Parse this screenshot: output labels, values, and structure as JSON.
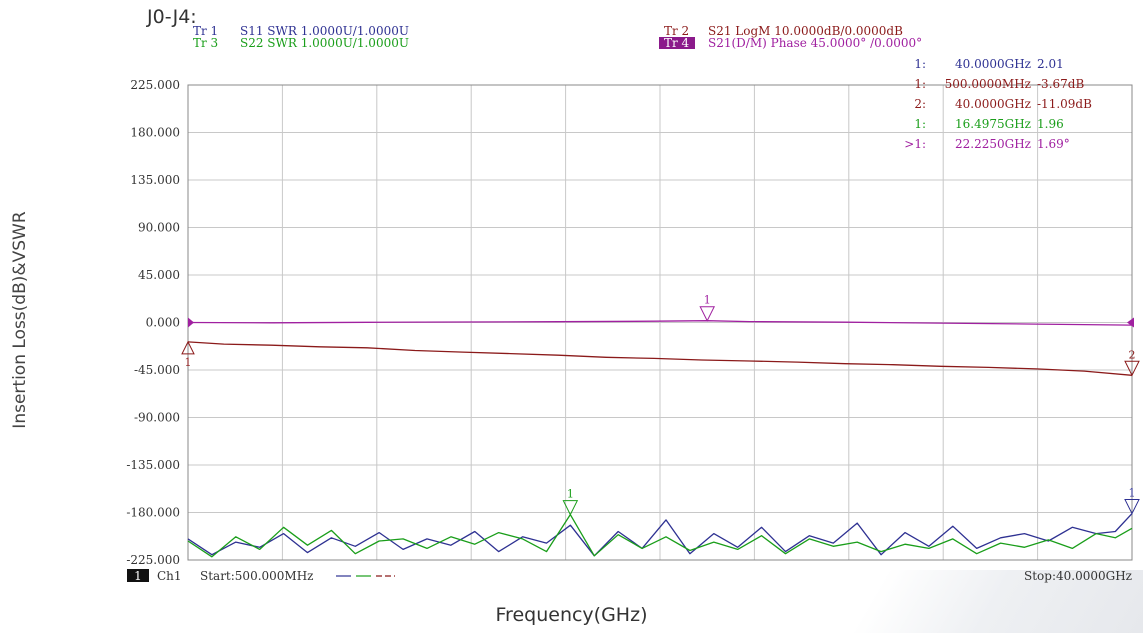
{
  "figure_title": "J0-J4:",
  "axis_titles": {
    "y": "Insertion Loss(dB)&VSWR",
    "x": "Frequency(GHz)"
  },
  "traces": [
    {
      "tr": "Tr 1",
      "desc": "S11 SWR 1.0000U/1.0000U",
      "color": "#2e3192"
    },
    {
      "tr": "Tr 3",
      "desc": "S22 SWR 1.0000U/1.0000U",
      "color": "#1a9e1a"
    },
    {
      "tr": "Tr 2",
      "desc": "S21 LogM 10.0000dB/0.0000dB",
      "color": "#8b1a1a"
    },
    {
      "tr": "Tr 4",
      "desc": "S21(D/M) Phase 45.0000° /0.0000°",
      "color": "#a020a0",
      "active": true
    }
  ],
  "marker_table": [
    {
      "idx": "1:",
      "freq": "40.0000GHz",
      "val": "2.01",
      "color": "#2e3192"
    },
    {
      "idx": "1:",
      "freq": "500.0000MHz",
      "val": "-3.67dB",
      "color": "#8b1a1a"
    },
    {
      "idx": "2:",
      "freq": "40.0000GHz",
      "val": "-11.09dB",
      "color": "#8b1a1a"
    },
    {
      "idx": "1:",
      "freq": "16.4975GHz",
      "val": "1.96",
      "color": "#1a9e1a"
    },
    {
      "idx": ">1:",
      "freq": "22.2250GHz",
      "val": "1.69°",
      "color": "#a020a0"
    }
  ],
  "footer": {
    "channel_box": "1",
    "channel": "Ch1",
    "start": "Start:500.000MHz",
    "stop": "Stop:40.0000GHz"
  },
  "colors": {
    "grid": "#c8c8c8",
    "frame": "#888888",
    "s11": "#2e3192",
    "s22": "#1a9e1a",
    "s21": "#8b1a1a",
    "phase": "#a020a0"
  },
  "chart_data": {
    "type": "line",
    "xlabel": "Frequency(GHz)",
    "ylabel": "Insertion Loss(dB)&VSWR",
    "x_range": [
      0.5,
      40
    ],
    "ylim": [
      -225,
      225
    ],
    "y_ticks": [
      "225.000",
      "180.000",
      "135.000",
      "90.000",
      "45.000",
      "0.000",
      "-45.000",
      "-90.000",
      "-135.000",
      "-180.000",
      "-225.000"
    ],
    "y_tick_values": [
      225,
      180,
      135,
      90,
      45,
      0,
      -45,
      -90,
      -135,
      -180,
      -225
    ],
    "grid": true,
    "series": [
      {
        "name": "S21(D/M) Phase",
        "color": "#a020a0",
        "x": [
          0.5,
          4,
          8,
          12,
          16,
          20,
          22.225,
          24,
          28,
          32,
          36,
          40
        ],
        "y": [
          0,
          -0.3,
          0.2,
          0.5,
          0.8,
          1.2,
          1.69,
          0.9,
          0.3,
          -0.6,
          -1.5,
          -2.5
        ]
      },
      {
        "name": "S21 LogM",
        "color": "#8b1a1a",
        "x": [
          0.5,
          2,
          4,
          6,
          8,
          10,
          12,
          14,
          16,
          18,
          20,
          22,
          24,
          26,
          28,
          30,
          32,
          34,
          36,
          38,
          40
        ],
        "y": [
          -18.4,
          -20.5,
          -21.5,
          -23,
          -24,
          -26.5,
          -28,
          -29.5,
          -31,
          -33,
          -34,
          -35.5,
          -36.5,
          -37.5,
          -39,
          -40,
          -41.5,
          -42.5,
          -44,
          -46,
          -50
        ]
      },
      {
        "name": "S11 SWR",
        "color": "#2e3192",
        "x": [
          0.5,
          1.5,
          2.5,
          3.5,
          4.5,
          5.5,
          6.5,
          7.5,
          8.5,
          9.5,
          10.5,
          11.5,
          12.5,
          13.5,
          14.5,
          15.5,
          16.5,
          17.5,
          18.5,
          19.5,
          20.5,
          21.5,
          22.5,
          23.5,
          24.5,
          25.5,
          26.5,
          27.5,
          28.5,
          29.5,
          30.5,
          31.5,
          32.5,
          33.5,
          34.5,
          35.5,
          36.5,
          37.5,
          38.5,
          39.3,
          40
        ],
        "y": [
          -205,
          -220,
          -208,
          -213,
          -200,
          -218,
          -204,
          -212,
          -199,
          -215,
          -205,
          -211,
          -198,
          -217,
          -203,
          -209,
          -192,
          -221,
          -198,
          -214,
          -187,
          -219,
          -200,
          -213,
          -194,
          -217,
          -202,
          -209,
          -190,
          -220,
          -199,
          -212,
          -193,
          -214,
          -204,
          -200,
          -207,
          -194,
          -200,
          -198,
          -181
        ]
      },
      {
        "name": "S22 SWR",
        "color": "#1a9e1a",
        "x": [
          0.5,
          1.5,
          2.5,
          3.5,
          4.5,
          5.5,
          6.5,
          7.5,
          8.5,
          9.5,
          10.5,
          11.5,
          12.5,
          13.5,
          14.5,
          15.5,
          16.4975,
          17.5,
          18.5,
          19.5,
          20.5,
          21.5,
          22.5,
          23.5,
          24.5,
          25.5,
          26.5,
          27.5,
          28.5,
          29.5,
          30.5,
          31.5,
          32.5,
          33.5,
          34.5,
          35.5,
          36.5,
          37.5,
          38.5,
          39.3,
          40
        ],
        "y": [
          -207,
          -222,
          -203,
          -215,
          -194,
          -211,
          -197,
          -219,
          -207,
          -205,
          -214,
          -203,
          -210,
          -199,
          -205,
          -217,
          -182,
          -221,
          -201,
          -214,
          -203,
          -216,
          -208,
          -215,
          -202,
          -219,
          -205,
          -212,
          -208,
          -217,
          -210,
          -214,
          -205,
          -219,
          -209,
          -213,
          -206,
          -214,
          -200,
          -204,
          -195
        ]
      }
    ],
    "markers": [
      {
        "trace": "S21 LogM",
        "label": "1",
        "x": 0.5,
        "y": -18.4,
        "color": "#8b1a1a",
        "dir": "up"
      },
      {
        "trace": "S21 LogM",
        "label": "2",
        "x": 40,
        "y": -50,
        "color": "#8b1a1a",
        "dir": "down"
      },
      {
        "trace": "S21(D/M) Phase",
        "label": "1",
        "x": 22.225,
        "y": 1.69,
        "color": "#a020a0",
        "dir": "down"
      },
      {
        "trace": "S22 SWR",
        "label": "1",
        "x": 16.4975,
        "y": -182,
        "color": "#1a9e1a",
        "dir": "down"
      },
      {
        "trace": "S11 SWR",
        "label": "1",
        "x": 40,
        "y": -181,
        "color": "#2e3192",
        "dir": "down"
      }
    ]
  }
}
